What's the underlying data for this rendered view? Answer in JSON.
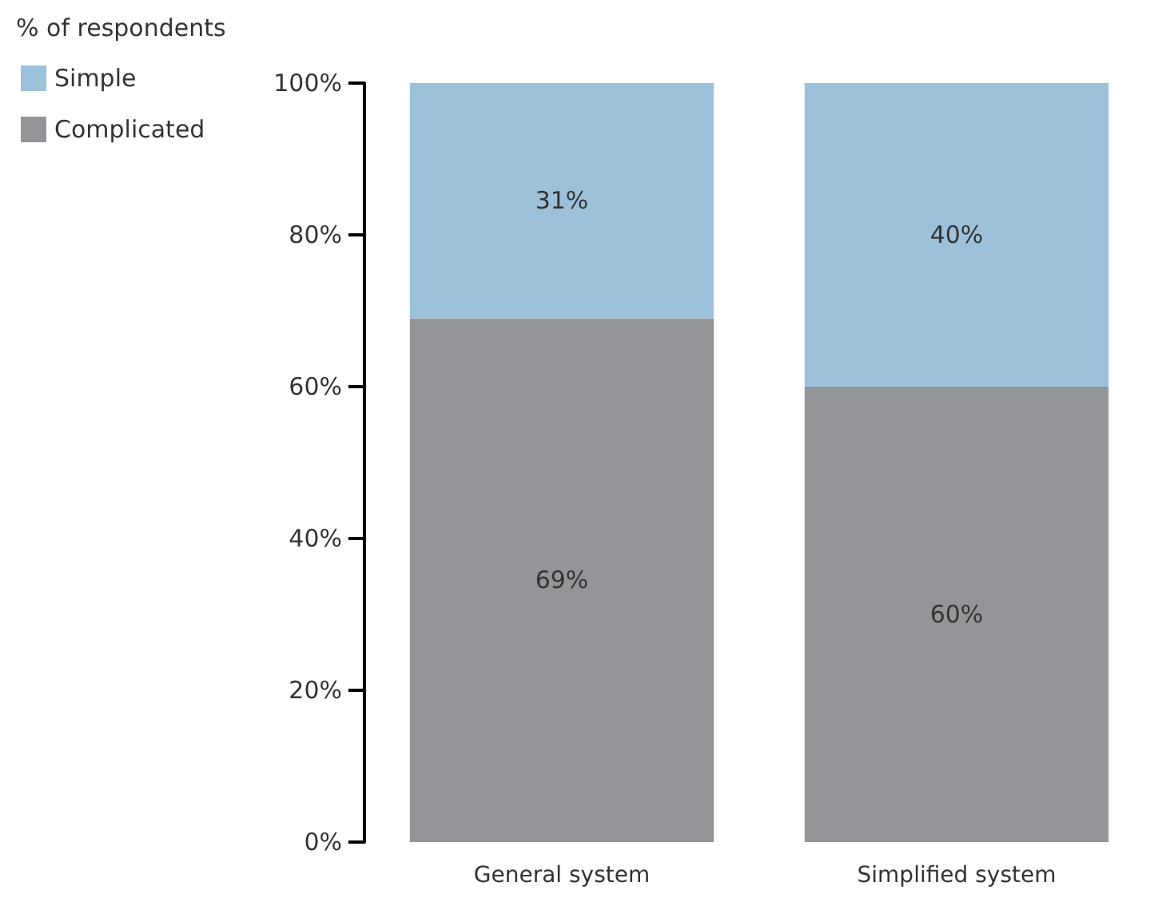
{
  "chart_data": {
    "type": "bar",
    "stacked": true,
    "ylabel": "% of respondents",
    "categories": [
      "General system",
      "Simplified system"
    ],
    "series": [
      {
        "name": "Complicated",
        "color": "#939598",
        "values": [
          69,
          60
        ],
        "value_labels": [
          "69%",
          "60%"
        ]
      },
      {
        "name": "Simple",
        "color": "#9bc1db",
        "values": [
          31,
          40
        ],
        "value_labels": [
          "31%",
          "40%"
        ]
      }
    ],
    "ylim": [
      0,
      100
    ],
    "yticks": [
      {
        "value": 0,
        "label": "0%"
      },
      {
        "value": 20,
        "label": "20%"
      },
      {
        "value": 40,
        "label": "40%"
      },
      {
        "value": 60,
        "label": "60%"
      },
      {
        "value": 80,
        "label": "80%"
      },
      {
        "value": 100,
        "label": "100%"
      }
    ],
    "grid": false,
    "legend": "top left"
  }
}
